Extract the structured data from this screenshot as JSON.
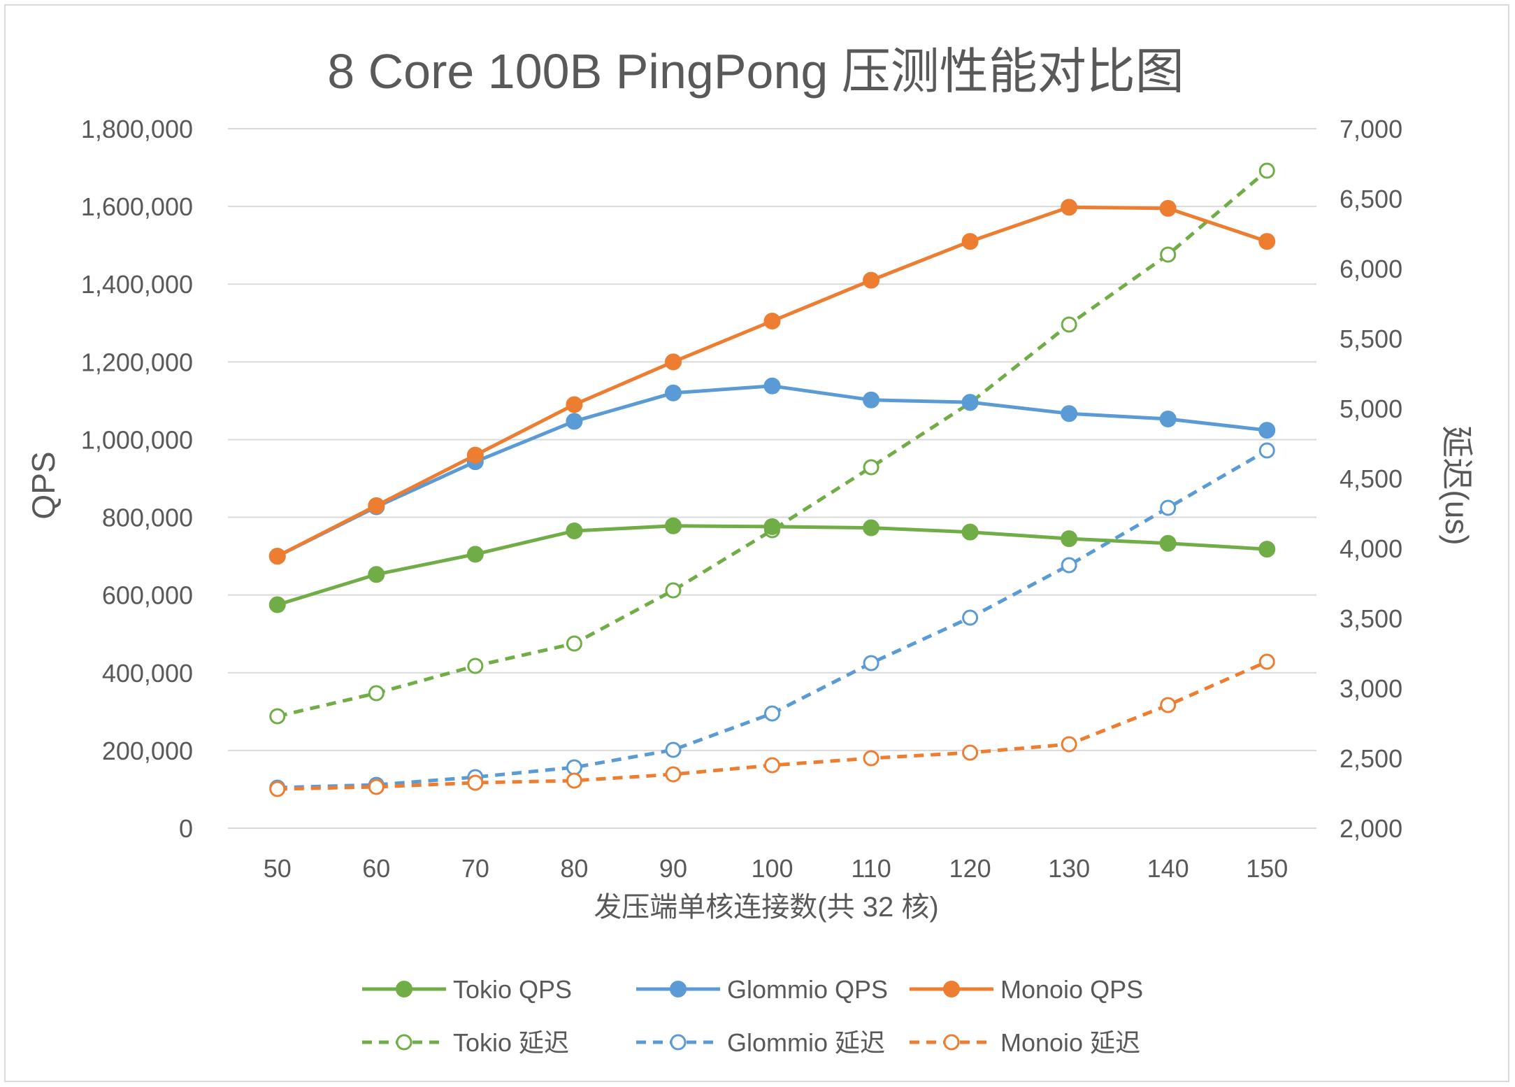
{
  "chart_data": {
    "type": "line",
    "title": "8 Core 100B PingPong 压测性能对比图",
    "xlabel": "发压端单核连接数(共 32 核)",
    "ylabel": "QPS",
    "y2label": "延迟(us)",
    "x": [
      50,
      60,
      70,
      80,
      90,
      100,
      110,
      120,
      130,
      140,
      150
    ],
    "x_tick_labels": [
      "50",
      "60",
      "70",
      "80",
      "90",
      "100",
      "110",
      "120",
      "130",
      "140",
      "150"
    ],
    "ylim": [
      0,
      1800000
    ],
    "y_ticks": [
      0,
      200000,
      400000,
      600000,
      800000,
      1000000,
      1200000,
      1400000,
      1600000,
      1800000
    ],
    "y_tick_labels": [
      "0",
      "200,000",
      "400,000",
      "600,000",
      "800,000",
      "1,000,000",
      "1,200,000",
      "1,400,000",
      "1,600,000",
      "1,800,000"
    ],
    "y2lim": [
      2000,
      7000
    ],
    "y2_ticks": [
      2000,
      2500,
      3000,
      3500,
      4000,
      4500,
      5000,
      5500,
      6000,
      6500,
      7000
    ],
    "y2_tick_labels": [
      "2,000",
      "2,500",
      "3,000",
      "3,500",
      "4,000",
      "4,500",
      "5,000",
      "5,500",
      "6,000",
      "6,500",
      "7,000"
    ],
    "grid": true,
    "legend_position": "bottom",
    "series": [
      {
        "name": "Tokio QPS",
        "axis": "left",
        "style": "solid",
        "marker": "filled",
        "color": "#70ad47",
        "values": [
          575000,
          653000,
          705000,
          765000,
          778000,
          776000,
          773000,
          762000,
          745000,
          733000,
          718000
        ]
      },
      {
        "name": "Glommio QPS",
        "axis": "left",
        "style": "solid",
        "marker": "filled",
        "color": "#5b9bd5",
        "values": [
          700000,
          827000,
          943000,
          1047000,
          1120000,
          1138000,
          1102000,
          1096000,
          1067000,
          1053000,
          1024000
        ]
      },
      {
        "name": "Monoio QPS",
        "axis": "left",
        "style": "solid",
        "marker": "filled",
        "color": "#ed7d31",
        "values": [
          700000,
          830000,
          960000,
          1090000,
          1200000,
          1305000,
          1410000,
          1510000,
          1598000,
          1595000,
          1510000
        ]
      },
      {
        "name": "Tokio 延迟",
        "axis": "right",
        "style": "dashed",
        "marker": "hollow",
        "color": "#70ad47",
        "values": [
          2800,
          2965,
          3160,
          3320,
          3700,
          4130,
          4580,
          5040,
          5600,
          6100,
          6700
        ]
      },
      {
        "name": "Glommio 延迟",
        "axis": "right",
        "style": "dashed",
        "marker": "hollow",
        "color": "#5b9bd5",
        "values": [
          2290,
          2310,
          2365,
          2435,
          2560,
          2820,
          3180,
          3505,
          3880,
          4290,
          4700
        ]
      },
      {
        "name": "Monoio 延迟",
        "axis": "right",
        "style": "dashed",
        "marker": "hollow",
        "color": "#ed7d31",
        "values": [
          2280,
          2295,
          2325,
          2340,
          2385,
          2450,
          2500,
          2540,
          2600,
          2880,
          3190
        ]
      }
    ]
  }
}
